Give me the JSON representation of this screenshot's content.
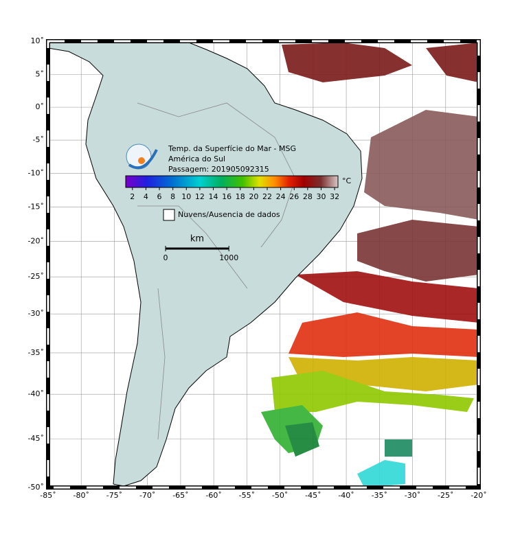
{
  "map": {
    "title_lines": [
      "Temp. da Superfície do Mar - MSG",
      "América do Sul",
      "Passagem: 201905092315"
    ],
    "lonlim": [
      -85,
      -20
    ],
    "latlim": [
      -50,
      10
    ],
    "projection": "mercator",
    "lonticks": [
      {
        "value": -85,
        "label": "-85˚"
      },
      {
        "value": -80,
        "label": "-80˚"
      },
      {
        "value": -75,
        "label": "-75˚"
      },
      {
        "value": -70,
        "label": "-70˚"
      },
      {
        "value": -65,
        "label": "-65˚"
      },
      {
        "value": -60,
        "label": "-60˚"
      },
      {
        "value": -55,
        "label": "-55˚"
      },
      {
        "value": -50,
        "label": "-50˚"
      },
      {
        "value": -45,
        "label": "-45˚"
      },
      {
        "value": -40,
        "label": "-40˚"
      },
      {
        "value": -35,
        "label": "-35˚"
      },
      {
        "value": -30,
        "label": "-30˚"
      },
      {
        "value": -25,
        "label": "-25˚"
      },
      {
        "value": -20,
        "label": "-20˚"
      }
    ],
    "latticks": [
      {
        "value": 10,
        "label": "10˚"
      },
      {
        "value": 5,
        "label": "5˚"
      },
      {
        "value": 0,
        "label": "0˚"
      },
      {
        "value": -5,
        "label": "-5˚"
      },
      {
        "value": -10,
        "label": "-10˚"
      },
      {
        "value": -15,
        "label": "-15˚"
      },
      {
        "value": -20,
        "label": "-20˚"
      },
      {
        "value": -25,
        "label": "-25˚"
      },
      {
        "value": -30,
        "label": "-30˚"
      },
      {
        "value": -35,
        "label": "-35˚"
      },
      {
        "value": -40,
        "label": "-40˚"
      },
      {
        "value": -45,
        "label": "-45˚"
      },
      {
        "value": -50,
        "label": "-50˚"
      }
    ],
    "colorbar": {
      "range": [
        1,
        32.5
      ],
      "ticks": [
        2,
        4,
        6,
        8,
        10,
        12,
        14,
        16,
        18,
        20,
        22,
        24,
        26,
        28,
        30,
        32
      ],
      "unit": "°C"
    },
    "legend": "Nuvens/Ausencia de dados",
    "scale": {
      "label": "km",
      "ticks": [
        0,
        1000
      ]
    }
  }
}
